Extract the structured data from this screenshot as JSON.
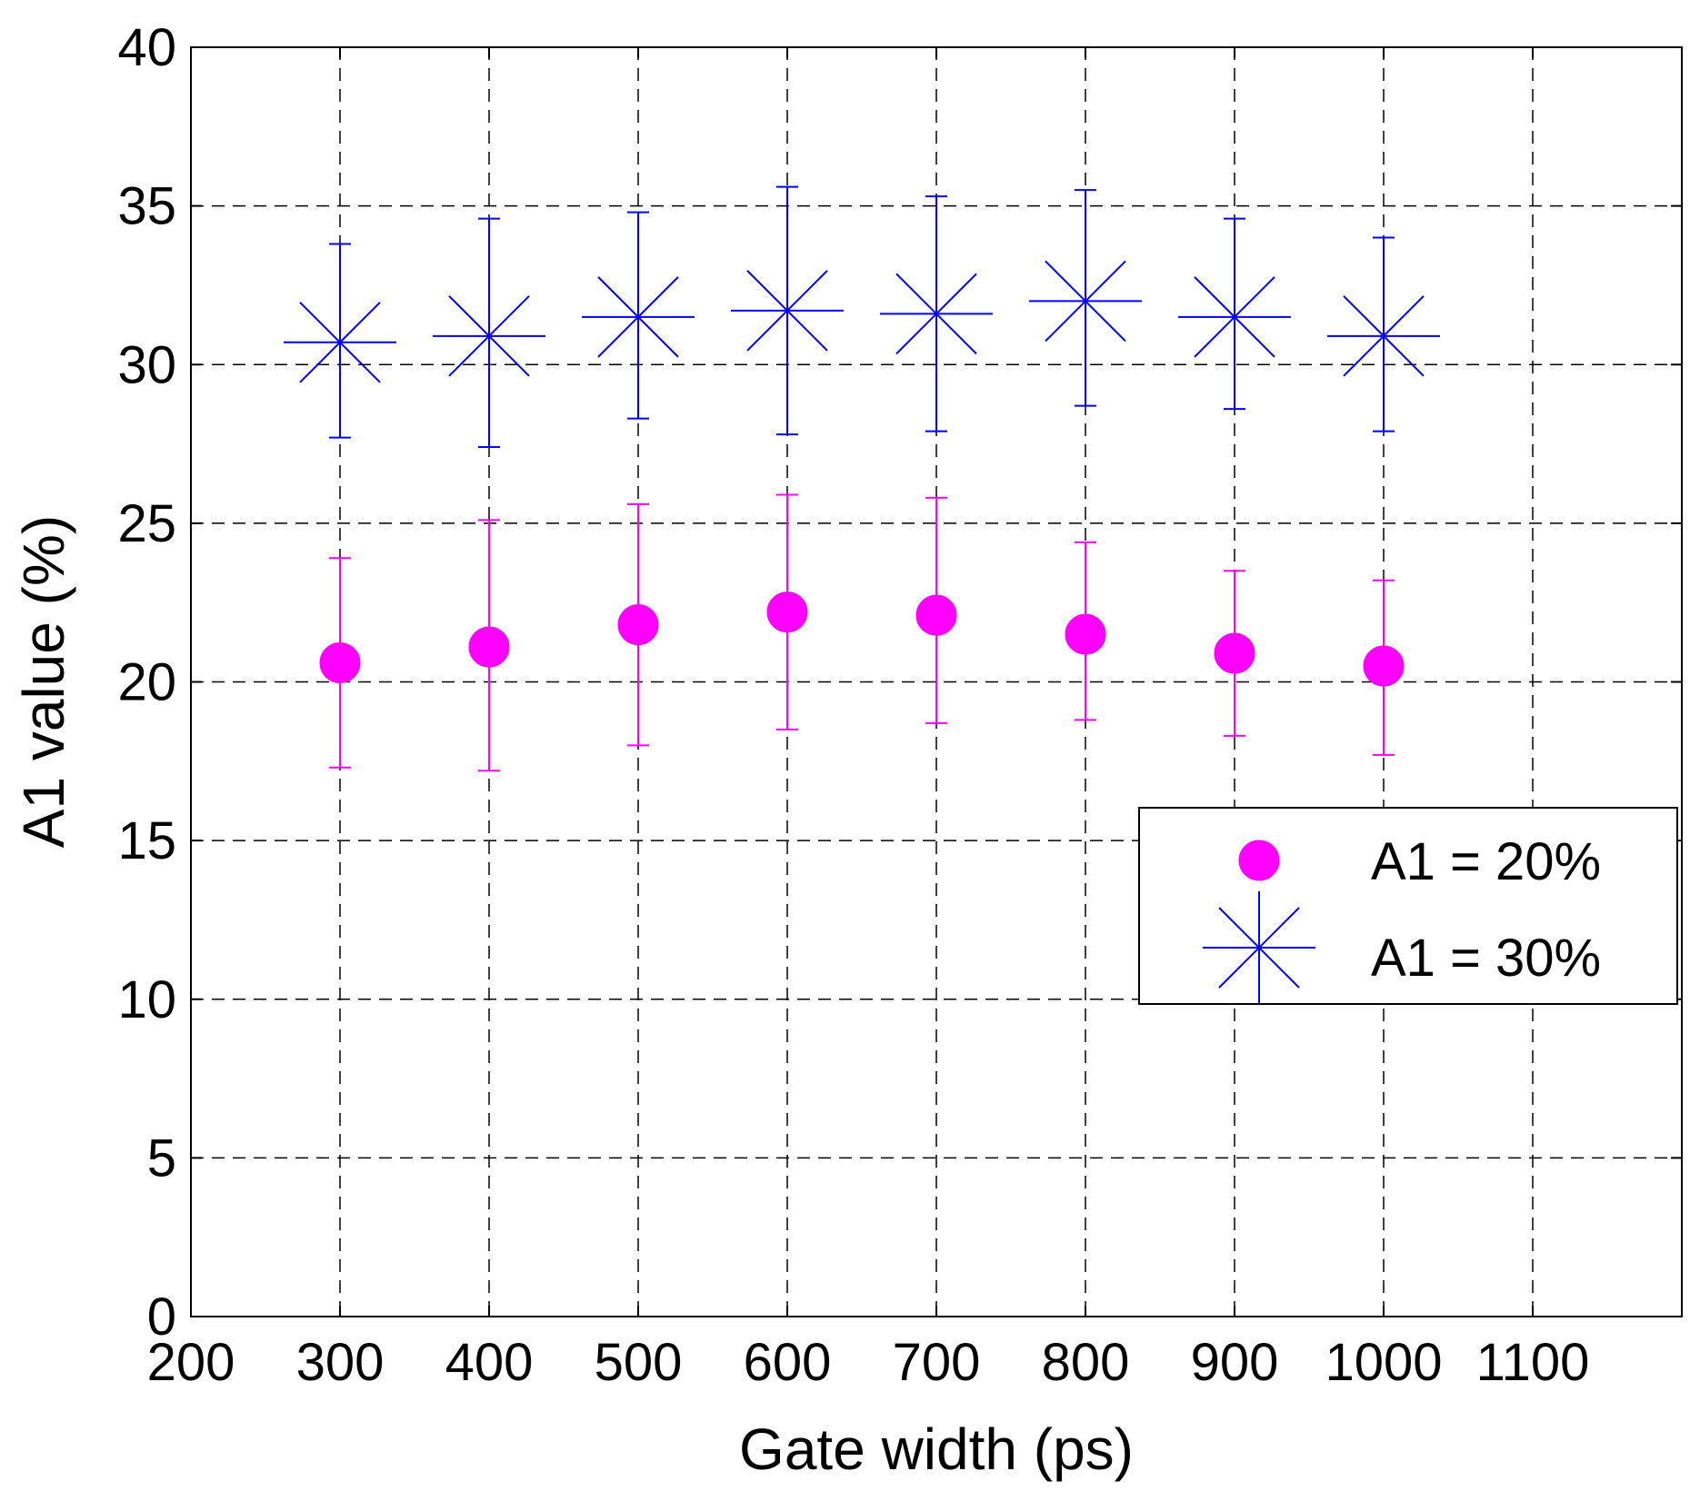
{
  "chart_data": {
    "type": "scatter",
    "title": "",
    "xlabel": "Gate width (ps)",
    "ylabel": "A1 value (%)",
    "xlim": [
      200,
      1200
    ],
    "ylim": [
      0,
      40
    ],
    "xticks": [
      200,
      300,
      400,
      500,
      600,
      700,
      800,
      900,
      1000,
      1100
    ],
    "xtick_labels": [
      "200",
      "300",
      "400",
      "500",
      "600",
      "700",
      "800",
      "900",
      "1000",
      "1100"
    ],
    "yticks": [
      0,
      5,
      10,
      15,
      20,
      25,
      30,
      35,
      40
    ],
    "ytick_labels": [
      "0",
      "5",
      "10",
      "15",
      "20",
      "25",
      "30",
      "35",
      "40"
    ],
    "grid": true,
    "grid_style": "dashed",
    "legend_position": "lower-right of upper half (right side)",
    "series": [
      {
        "name": "A1 = 20%",
        "marker": "filled-circle",
        "color": "#ff00ff",
        "x": [
          300,
          400,
          500,
          600,
          700,
          800,
          900,
          1000
        ],
        "y": [
          20.6,
          21.1,
          21.8,
          22.2,
          22.1,
          21.5,
          20.9,
          20.5
        ],
        "err_low": [
          17.3,
          17.2,
          18.0,
          18.5,
          18.7,
          18.8,
          18.3,
          17.7
        ],
        "err_high": [
          23.9,
          25.1,
          25.6,
          25.9,
          25.8,
          24.4,
          23.5,
          23.2
        ]
      },
      {
        "name": "A1 = 30%",
        "marker": "asterisk",
        "color": "#0000ff",
        "x": [
          300,
          400,
          500,
          600,
          700,
          800,
          900,
          1000
        ],
        "y": [
          30.7,
          30.9,
          31.5,
          31.7,
          31.6,
          32.0,
          31.5,
          30.9
        ],
        "err_low": [
          27.7,
          27.4,
          28.3,
          27.8,
          27.9,
          28.7,
          28.6,
          27.9
        ],
        "err_high": [
          33.8,
          34.6,
          34.8,
          35.6,
          35.3,
          35.5,
          34.6,
          34.0
        ]
      }
    ]
  }
}
